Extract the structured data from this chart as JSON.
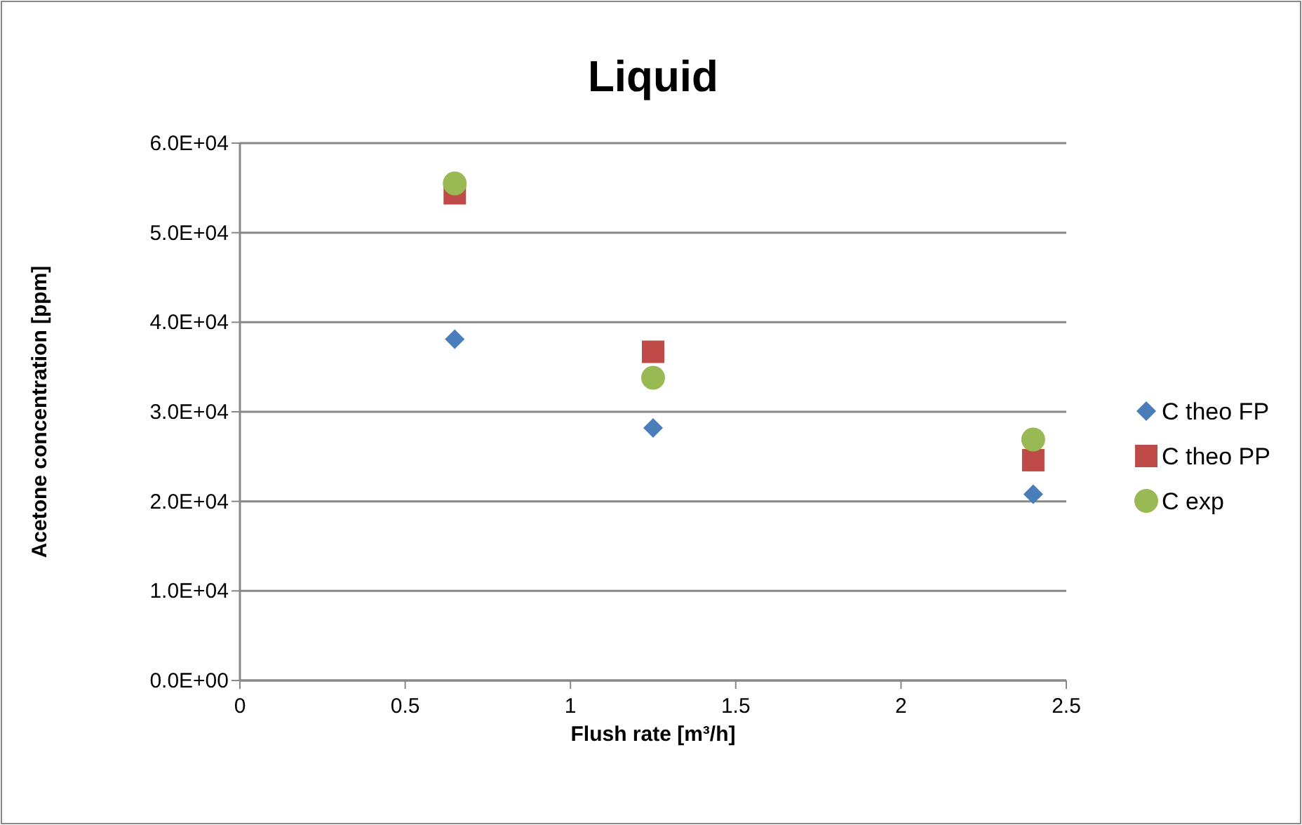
{
  "chart_data": {
    "type": "scatter",
    "title": "Liquid",
    "xlabel": "Flush rate [m³/h]",
    "ylabel": "Acetone concentration [ppm]",
    "xlim": [
      0,
      2.5
    ],
    "xticks": [
      0,
      0.5,
      1,
      1.5,
      2,
      2.5
    ],
    "ylim": [
      0,
      60000
    ],
    "yticks": [
      {
        "value": 0,
        "label": "0.0E+00"
      },
      {
        "value": 10000,
        "label": "1.0E+04"
      },
      {
        "value": 20000,
        "label": "2.0E+04"
      },
      {
        "value": 30000,
        "label": "3.0E+04"
      },
      {
        "value": 40000,
        "label": "4.0E+04"
      },
      {
        "value": 50000,
        "label": "5.0E+04"
      },
      {
        "value": 60000,
        "label": "6.0E+04"
      }
    ],
    "grid": "y",
    "legend": "right",
    "series": [
      {
        "name": "C theo FP",
        "color": "#4a7ebb",
        "marker": "diamond",
        "x": [
          0.65,
          1.25,
          2.4
        ],
        "values": [
          38100,
          28200,
          20800
        ]
      },
      {
        "name": "C theo PP",
        "color": "#be4b48",
        "marker": "square",
        "x": [
          0.65,
          1.25,
          2.4
        ],
        "values": [
          54400,
          36700,
          24600
        ]
      },
      {
        "name": "C exp",
        "color": "#98b954",
        "marker": "circle",
        "x": [
          0.65,
          1.25,
          2.4
        ],
        "values": [
          55500,
          33800,
          26900
        ]
      }
    ]
  }
}
